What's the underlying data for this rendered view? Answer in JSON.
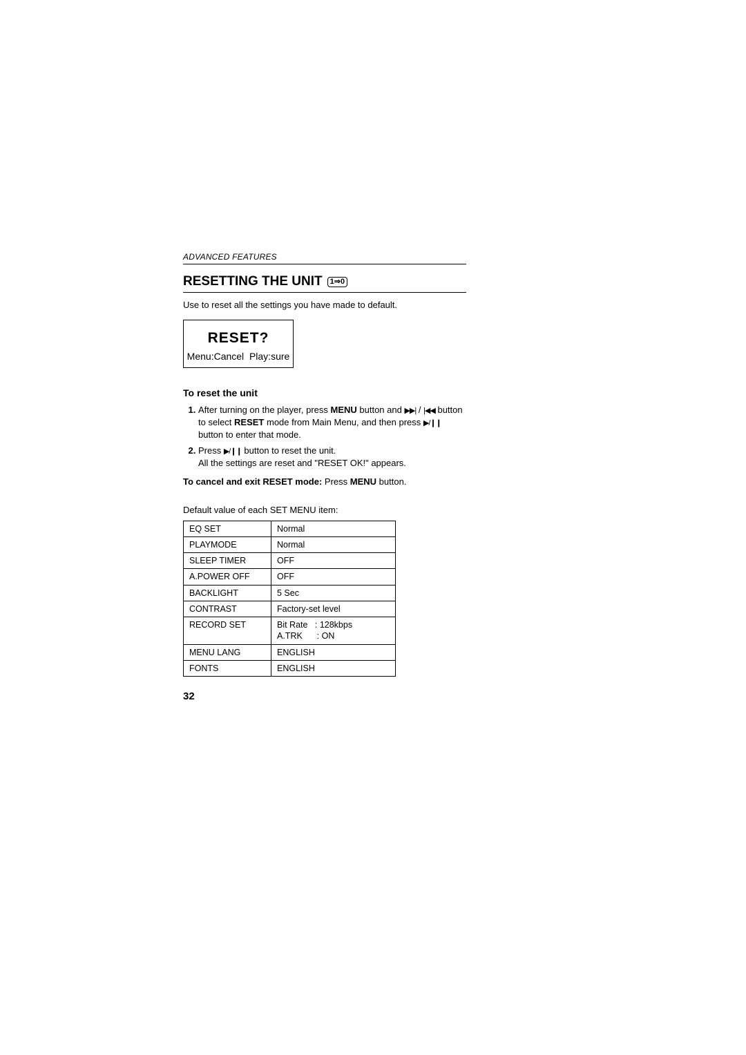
{
  "section_label": "ADVANCED FEATURES",
  "heading": "RESETTING THE UNIT",
  "reset_icon_text": "1⇒0",
  "intro": "Use to reset all the settings you have made to default.",
  "display": {
    "title": "RESET?",
    "subtitle": "Menu:Cancel  Play:sure"
  },
  "reset_heading": "To reset the unit",
  "steps": {
    "s1_a": "After turning on the player, press ",
    "s1_menu": "MENU",
    "s1_b": " button and ",
    "s1_next_icon": "▶▶|",
    "s1_slash": " / ",
    "s1_prev_icon": "|◀◀",
    "s1_c": " button to select ",
    "s1_reset": "RESET",
    "s1_d": " mode from Main Menu, and then press ",
    "s1_play_icon": "▶/❙❙",
    "s1_e": " button to enter that mode.",
    "s2_a": "Press ",
    "s2_play_icon": "▶/❙❙",
    "s2_b": " button to reset the unit.",
    "s2_c": "All the settings are reset and \"RESET OK!\" appears."
  },
  "cancel_bold": "To cancel and exit RESET mode:",
  "cancel_rest_a": " Press ",
  "cancel_menu": "MENU",
  "cancel_rest_b": " button.",
  "table_caption": "Default value of each SET MENU item:",
  "table": {
    "rows": [
      {
        "k": "EQ SET",
        "v": "Normal"
      },
      {
        "k": "PLAYMODE",
        "v": "Normal"
      },
      {
        "k": "SLEEP TIMER",
        "v": "OFF"
      },
      {
        "k": "A.POWER OFF",
        "v": "OFF"
      },
      {
        "k": "BACKLIGHT",
        "v": "5 Sec"
      },
      {
        "k": "CONTRAST",
        "v": "Factory-set level"
      },
      {
        "k": "RECORD SET",
        "v": "Bit Rate   : 128kbps\nA.TRK      : ON"
      },
      {
        "k": "MENU LANG",
        "v": "ENGLISH"
      },
      {
        "k": "FONTS",
        "v": "ENGLISH"
      }
    ]
  },
  "page_number": "32",
  "colors": {
    "text": "#000000",
    "background": "#ffffff",
    "border": "#000000"
  },
  "fonts": {
    "body_size_pt": 10,
    "heading_size_pt": 14,
    "display_title_pt": 16
  }
}
